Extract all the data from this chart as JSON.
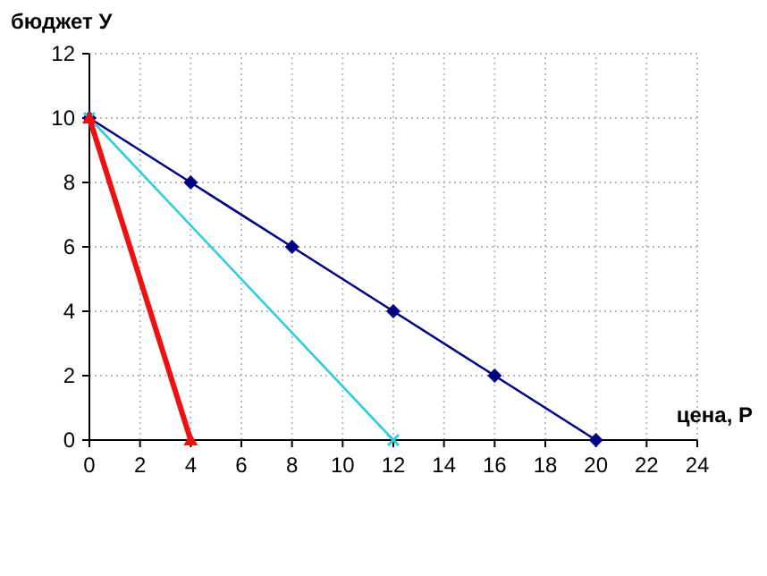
{
  "chart_data": {
    "type": "line",
    "xlabel": "цена, Р",
    "ylabel": "бюджет У",
    "xlim": [
      0,
      24
    ],
    "ylim": [
      0,
      12
    ],
    "xticks": [
      0,
      2,
      4,
      6,
      8,
      10,
      12,
      14,
      16,
      18,
      20,
      22,
      24
    ],
    "yticks": [
      0,
      2,
      4,
      6,
      8,
      10,
      12
    ],
    "grid": true,
    "series": [
      {
        "color": "#000080",
        "marker": "diamond",
        "x": [
          0,
          4,
          8,
          12,
          16,
          20
        ],
        "values": [
          10,
          8,
          6,
          4,
          2,
          0
        ]
      },
      {
        "color": "#33ccdd",
        "marker": "cross",
        "x": [
          0,
          12
        ],
        "values": [
          10,
          0
        ]
      },
      {
        "color": "#ee1111",
        "marker": "triangle",
        "x": [
          0,
          4
        ],
        "values": [
          10,
          0
        ]
      }
    ]
  }
}
